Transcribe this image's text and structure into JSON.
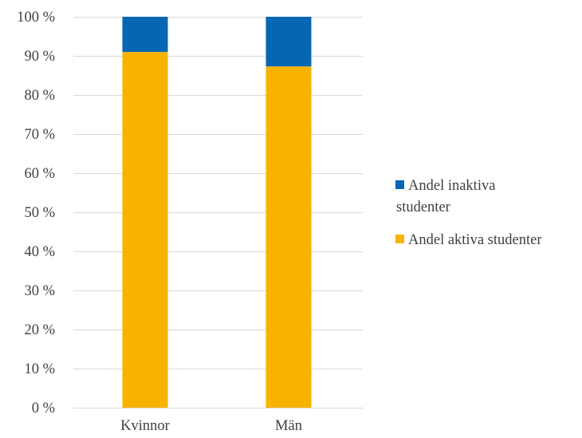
{
  "chart_data": {
    "type": "bar",
    "stacked": true,
    "categories": [
      "Kvinnor",
      "Män"
    ],
    "series": [
      {
        "name": "Andel aktiva studenter",
        "values": [
          91,
          87.3
        ],
        "color": "#F8B300"
      },
      {
        "name": "Andel inaktiva studenter",
        "values": [
          9,
          12.7
        ],
        "color": "#0567B3"
      }
    ],
    "ylim": [
      0,
      100
    ],
    "yticks": [
      0,
      10,
      20,
      30,
      40,
      50,
      60,
      70,
      80,
      90,
      100
    ],
    "ytick_suffix": " %",
    "grid": true,
    "legend": {
      "position": "right",
      "entries": [
        {
          "lines": [
            "Andel inaktiva",
            "studenter"
          ],
          "color": "#0567B3"
        },
        {
          "lines": [
            "Andel aktiva studenter"
          ],
          "color": "#F8B300"
        }
      ]
    },
    "title": "",
    "xlabel": "",
    "ylabel": ""
  }
}
